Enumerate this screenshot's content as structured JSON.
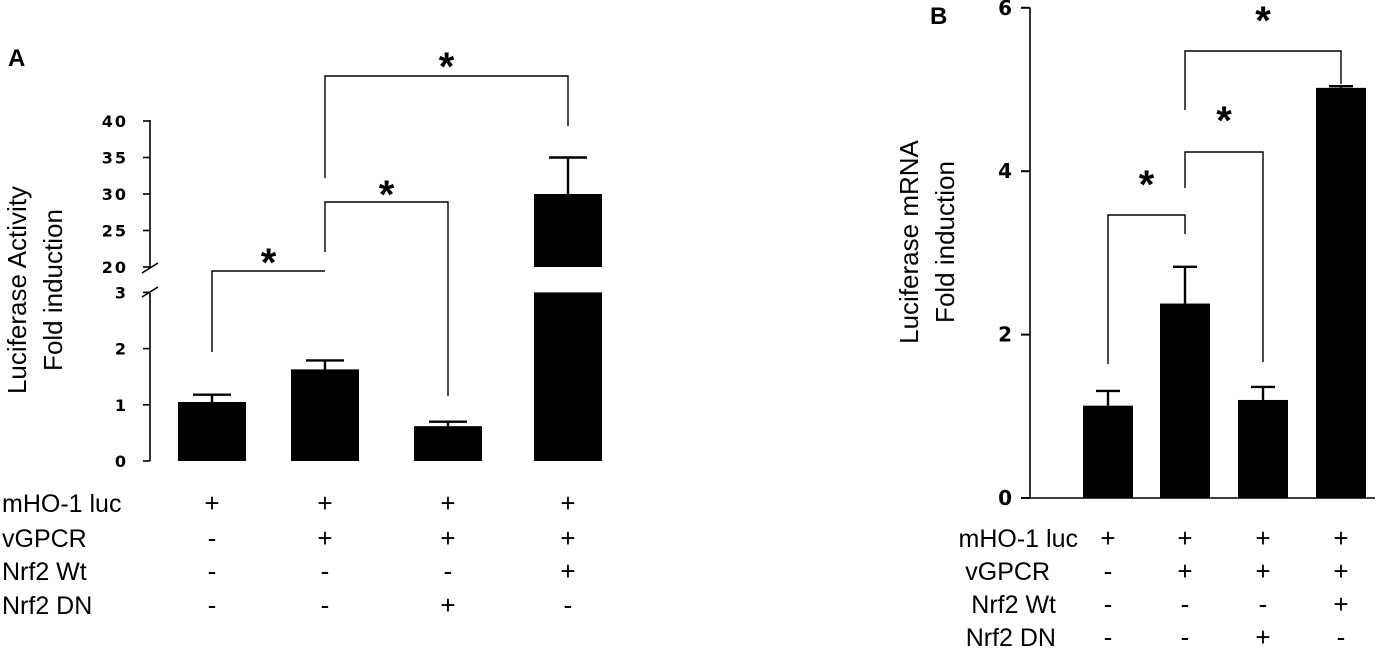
{
  "chart_data": [
    {
      "panel": "A",
      "type": "bar",
      "ylabel": [
        "Luciferase Activity",
        "Fold induction"
      ],
      "y_axis_broken": true,
      "ylim_lower": [
        0,
        3
      ],
      "ylim_upper": [
        20,
        40
      ],
      "yticks_lower": [
        "0",
        "1",
        "2",
        "3"
      ],
      "yticks_upper": [
        "20",
        "25",
        "30",
        "35",
        "40"
      ],
      "values": [
        1.05,
        1.63,
        0.62,
        30
      ],
      "errors": [
        0.13,
        0.16,
        0.08,
        5
      ],
      "conditions": [
        {
          "name": "mHO-1 luc",
          "signs": [
            "+",
            "+",
            "+",
            "+"
          ]
        },
        {
          "name": "vGPCR",
          "signs": [
            "-",
            "+",
            "+",
            "+"
          ]
        },
        {
          "name": "Nrf2 Wt",
          "signs": [
            "-",
            "-",
            "-",
            "+"
          ]
        },
        {
          "name": "Nrf2 DN",
          "signs": [
            "-",
            "-",
            "+",
            "-"
          ]
        }
      ],
      "significance": [
        {
          "from": 0,
          "to": 1,
          "label": "*"
        },
        {
          "from": 1,
          "to": 2,
          "label": "*"
        },
        {
          "from": 1,
          "to": 3,
          "label": "*"
        }
      ]
    },
    {
      "panel": "B",
      "type": "bar",
      "ylabel": [
        "Luciferase mRNA",
        "Fold induction"
      ],
      "ylim": [
        0,
        6
      ],
      "yticks": [
        "0",
        "2",
        "4",
        "6"
      ],
      "values": [
        1.13,
        2.38,
        1.2,
        5.02
      ],
      "errors": [
        0.18,
        0.45,
        0.16,
        0.02
      ],
      "conditions": [
        {
          "name": "mHO-1 luc",
          "signs": [
            "+",
            "+",
            "+",
            "+"
          ]
        },
        {
          "name": "vGPCR",
          "signs": [
            "-",
            "+",
            "+",
            "+"
          ]
        },
        {
          "name": "Nrf2 Wt",
          "signs": [
            "-",
            "-",
            "-",
            "+"
          ]
        },
        {
          "name": "Nrf2 DN",
          "signs": [
            "-",
            "-",
            "+",
            "-"
          ]
        }
      ],
      "significance": [
        {
          "from": 0,
          "to": 1,
          "label": "*"
        },
        {
          "from": 1,
          "to": 2,
          "label": "*"
        },
        {
          "from": 1,
          "to": 3,
          "label": "*"
        }
      ]
    }
  ]
}
